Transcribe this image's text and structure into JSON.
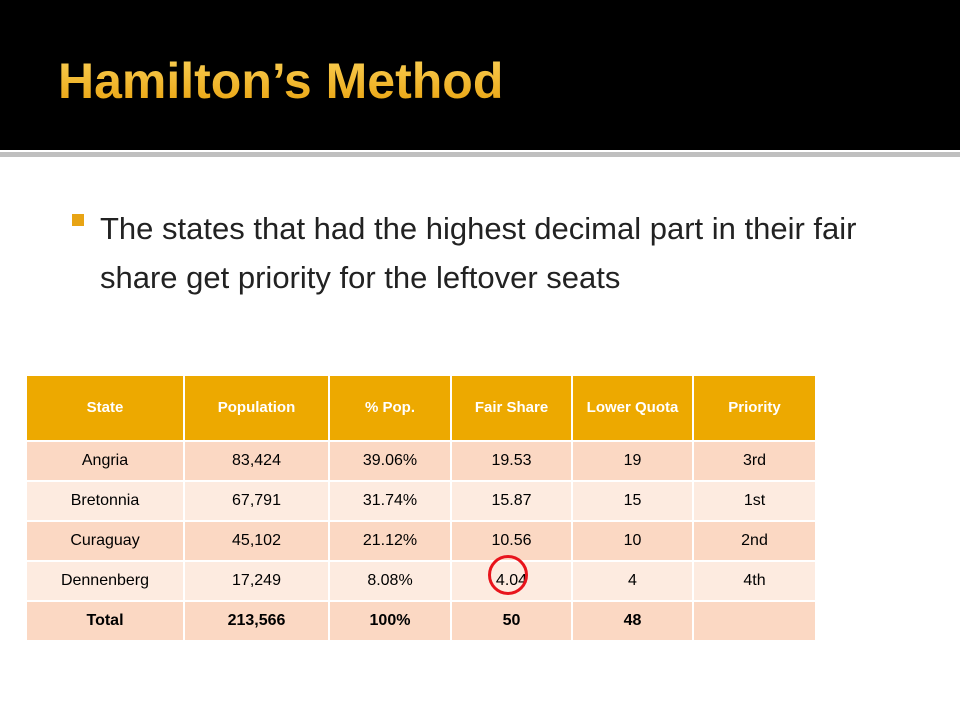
{
  "header": {
    "title": "Hamilton’s Method"
  },
  "bullet": "The states that had the highest decimal part in their fair share get priority for the leftover seats",
  "table": {
    "columns": [
      "State",
      "Population",
      "% Pop.",
      "Fair Share",
      "Lower Quota",
      "Priority"
    ],
    "rows": [
      [
        "Angria",
        "83,424",
        "39.06%",
        "19.53",
        "19",
        "3rd"
      ],
      [
        "Bretonnia",
        "67,791",
        "31.74%",
        "15.87",
        "15",
        "1st"
      ],
      [
        "Curaguay",
        "45,102",
        "21.12%",
        "10.56",
        "10",
        "2nd"
      ],
      [
        "Dennenberg",
        "17,249",
        "8.08%",
        "4.04",
        "4",
        "4th"
      ],
      [
        "Total",
        "213,566",
        "100%",
        "50",
        "48"
      ]
    ]
  }
}
